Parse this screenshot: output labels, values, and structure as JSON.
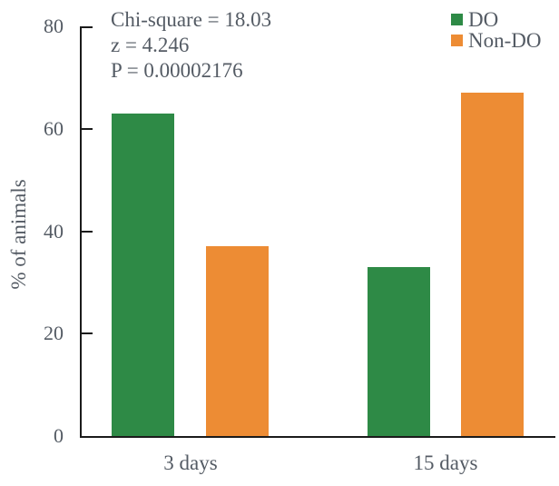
{
  "chart_data": {
    "type": "bar",
    "title": "",
    "categories": [
      "3 days",
      "15 days"
    ],
    "series": [
      {
        "name": "DO",
        "color": "#2e8a46",
        "values": [
          63,
          33
        ]
      },
      {
        "name": "Non-DO",
        "color": "#ed8c34",
        "values": [
          37,
          67
        ]
      }
    ],
    "xlabel": "",
    "ylabel": "% of animals",
    "ylim": [
      0,
      80
    ],
    "yticks": [
      0,
      20,
      40,
      60,
      80
    ],
    "grid": false,
    "legend_position": "top-right",
    "annotation": {
      "lines": [
        "Chi-square = 18.03",
        "z = 4.246",
        "P = 0.00002176"
      ]
    }
  },
  "colors": {
    "axis": "#1b1b1b",
    "text": "#545b64",
    "do_green": "#2e8a46",
    "non_do_orange": "#ed8c34"
  }
}
